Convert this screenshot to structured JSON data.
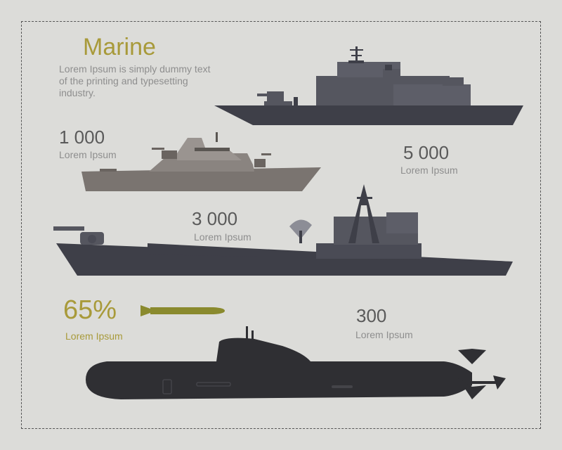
{
  "header": {
    "title": "Marine",
    "description": "Lorem Ipsum is simply dummy text of the printing and typesetting industry."
  },
  "stats": {
    "boat": {
      "value": "1 000",
      "label": "Lorem Ipsum"
    },
    "destroyer": {
      "value": "5 000",
      "label": "Lorem Ipsum"
    },
    "cruiser": {
      "value": "3 000",
      "label": "Lorem Ipsum"
    },
    "submarine": {
      "value": "300",
      "label": "Lorem Ipsum"
    },
    "torpedo": {
      "value": "65%",
      "label": "Lorem Ipsum"
    }
  },
  "colors": {
    "accent": "#a89a3a",
    "dark_ship": "#3e3f48",
    "light_ship": "#7a7470",
    "submarine": "#2f2f33",
    "torpedo": "#8a8a2e"
  }
}
